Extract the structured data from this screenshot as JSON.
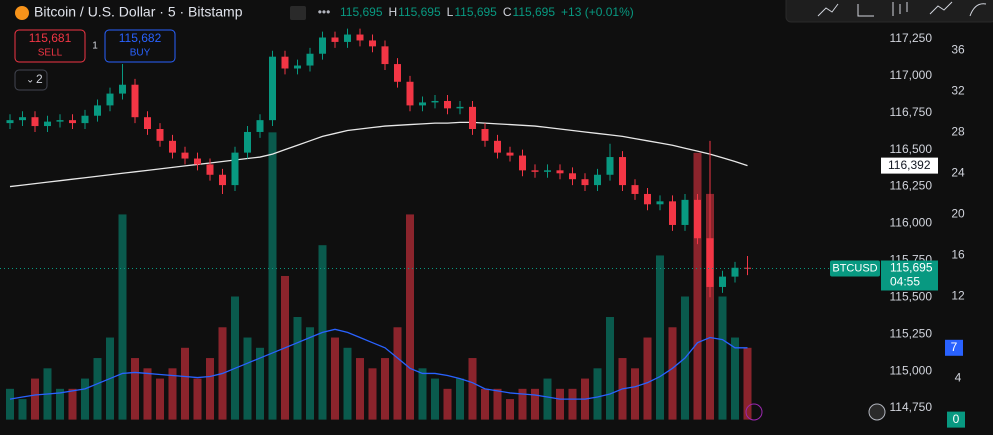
{
  "header": {
    "title": "Bitcoin / U.S. Dollar · 5 · Bitstamp",
    "ohlc": [
      {
        "value": "115,695"
      },
      {
        "key": "H",
        "value": "115,695"
      },
      {
        "key": "L",
        "value": "115,695"
      },
      {
        "key": "C",
        "value": "115,695"
      }
    ],
    "change": "+13 (+0.01%)"
  },
  "trade": {
    "sell_price": "115,681",
    "sell": "SELL",
    "spread": "1",
    "buy_price": "115,682",
    "buy": "BUY",
    "indicators": "2"
  },
  "chart_data": {
    "type": "candlestick",
    "open": [
      116680,
      116700,
      116720,
      116660,
      116690,
      116700,
      116680,
      116730,
      116800,
      116880,
      116940,
      116720,
      116640,
      116560,
      116480,
      116440,
      116400,
      116330,
      116260,
      116480,
      116620,
      116700,
      117130,
      117050,
      117070,
      117150,
      117260,
      117230,
      117280,
      117240,
      117200,
      117080,
      116960,
      116800,
      116820,
      116830,
      116780,
      116790,
      116640,
      116560,
      116480,
      116460,
      116360,
      116350,
      116360,
      116340,
      116300,
      116260,
      116330,
      116450,
      116260,
      116200,
      116130,
      116150,
      115990,
      116160,
      115900,
      115570,
      115640,
      115700
    ],
    "high": [
      116740,
      116760,
      116760,
      116730,
      116740,
      116740,
      116770,
      116840,
      116920,
      117080,
      116980,
      116760,
      116680,
      116600,
      116520,
      116480,
      116440,
      116370,
      116520,
      116660,
      116740,
      117170,
      117170,
      117110,
      117190,
      117300,
      117300,
      117320,
      117320,
      117280,
      117240,
      117120,
      117000,
      116860,
      116870,
      116870,
      116830,
      116830,
      116680,
      116600,
      116520,
      116500,
      116400,
      116400,
      116400,
      116380,
      116340,
      116370,
      116540,
      116490,
      116300,
      116240,
      116190,
      116190,
      116200,
      116200,
      116560,
      115680,
      115740,
      115780
    ],
    "low": [
      116640,
      116660,
      116620,
      116620,
      116650,
      116640,
      116640,
      116690,
      116760,
      116840,
      116680,
      116600,
      116520,
      116440,
      116400,
      116360,
      116290,
      116200,
      116220,
      116440,
      116580,
      116660,
      117010,
      117010,
      117030,
      117110,
      117190,
      117190,
      117200,
      117160,
      117040,
      116920,
      116760,
      116760,
      116780,
      116740,
      116740,
      116600,
      116520,
      116440,
      116420,
      116320,
      116310,
      116310,
      116300,
      116260,
      116220,
      116220,
      116290,
      116220,
      116160,
      116090,
      116090,
      115950,
      115950,
      115860,
      115500,
      115530,
      115600,
      115650
    ],
    "close": [
      116700,
      116720,
      116660,
      116690,
      116700,
      116680,
      116730,
      116800,
      116880,
      116940,
      116720,
      116640,
      116560,
      116480,
      116440,
      116400,
      116330,
      116260,
      116480,
      116620,
      116700,
      117130,
      117050,
      117070,
      117150,
      117260,
      117230,
      117280,
      117240,
      117200,
      117080,
      116960,
      116800,
      116820,
      116830,
      116780,
      116790,
      116640,
      116560,
      116480,
      116460,
      116360,
      116350,
      116360,
      116340,
      116300,
      116260,
      116330,
      116450,
      116260,
      116200,
      116130,
      116150,
      115990,
      116160,
      115900,
      115570,
      115640,
      115700,
      115695
    ],
    "volume": [
      3,
      2,
      4,
      5,
      3,
      3,
      4,
      6,
      8,
      20,
      6,
      5,
      4,
      5,
      7,
      4,
      6,
      9,
      12,
      8,
      7,
      28,
      14,
      10,
      9,
      17,
      8,
      7,
      6,
      5,
      6,
      9,
      20,
      5,
      4,
      3,
      4,
      6,
      3,
      3,
      2,
      3,
      3,
      4,
      3,
      3,
      4,
      5,
      10,
      6,
      5,
      8,
      16,
      9,
      12,
      26,
      22,
      12,
      8,
      7
    ],
    "ma": [
      116250,
      116260,
      116270,
      116280,
      116290,
      116300,
      116310,
      116320,
      116330,
      116340,
      116350,
      116360,
      116370,
      116380,
      116390,
      116400,
      116410,
      116420,
      116430,
      116440,
      116450,
      116470,
      116500,
      116530,
      116560,
      116590,
      116610,
      116630,
      116640,
      116650,
      116660,
      116665,
      116670,
      116675,
      116680,
      116680,
      116685,
      116685,
      116680,
      116675,
      116670,
      116665,
      116660,
      116650,
      116640,
      116630,
      116620,
      116610,
      116600,
      116590,
      116575,
      116560,
      116545,
      116530,
      116510,
      116490,
      116470,
      116445,
      116420,
      116392
    ],
    "volume_ma": [
      2,
      2.2,
      2.4,
      2.5,
      2.6,
      2.8,
      3,
      3.5,
      4,
      4.5,
      4.6,
      4.5,
      4.4,
      4.3,
      4.2,
      4.1,
      4.2,
      4.5,
      5,
      5.5,
      6,
      6.5,
      7,
      7.5,
      8,
      8.5,
      8.8,
      8.5,
      8,
      7.5,
      7,
      6,
      5,
      4.5,
      4.5,
      4.3,
      4,
      3.6,
      3,
      2.8,
      2.6,
      2.5,
      2.4,
      2.2,
      2,
      2,
      2,
      2.2,
      2.5,
      3,
      3.2,
      3.6,
      4.2,
      5,
      6,
      7.5,
      8,
      7.8,
      7,
      7
    ],
    "up_color": "#089981",
    "down_color": "#f23645",
    "ma_color": "#e8e8e8",
    "volume_ma_color": "#2962ff",
    "ylim": [
      114567,
      117514
    ],
    "yticks": [
      {
        "value": 114750,
        "label": "114,750"
      },
      {
        "value": 115000,
        "label": "115,000"
      },
      {
        "value": 115250,
        "label": "115,250"
      },
      {
        "value": 115500,
        "label": "115,500"
      },
      {
        "value": 115750,
        "label": "115,750"
      },
      {
        "value": 116000,
        "label": "116,000"
      },
      {
        "value": 116250,
        "label": "116,250"
      },
      {
        "value": 116500,
        "label": "116,500"
      },
      {
        "value": 116750,
        "label": "116,750"
      },
      {
        "value": 117000,
        "label": "117,000"
      },
      {
        "value": 117250,
        "label": "117,250"
      }
    ],
    "y2lim": [
      -1.5,
      40.9
    ],
    "y2ticks": [
      0,
      4,
      12,
      16,
      20,
      24,
      28,
      32,
      36
    ],
    "symbol": "BTCUSD",
    "last_price": {
      "value": 115695,
      "label": "115,695"
    },
    "countdown": "04:55",
    "ma_last": {
      "value": 116392,
      "label": "116,392"
    },
    "volume_last": 7
  }
}
